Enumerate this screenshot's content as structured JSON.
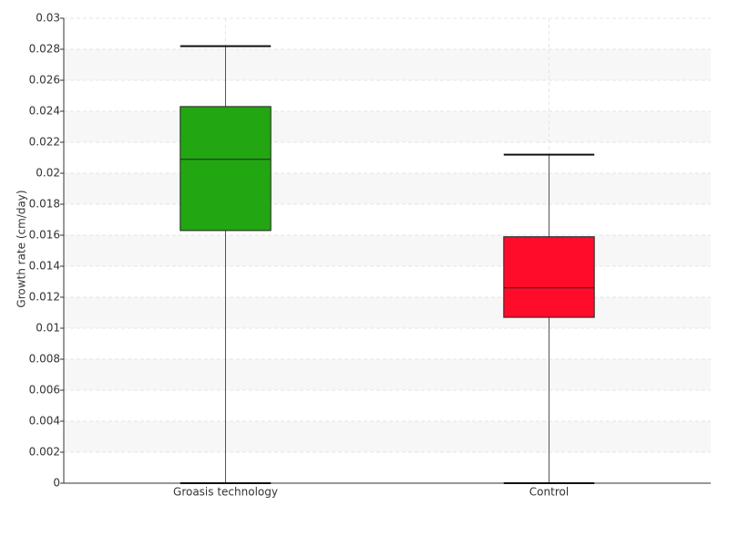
{
  "chart_data": {
    "type": "box",
    "y_label": "Growth rate (cm/day)",
    "categories": [
      "Groasis technology",
      "Control"
    ],
    "boxes": [
      {
        "min": 0,
        "q1": 0.0163,
        "median": 0.0209,
        "q3": 0.0243,
        "max": 0.0282,
        "color": "#22a612"
      },
      {
        "min": 0,
        "q1": 0.0107,
        "median": 0.0126,
        "q3": 0.0159,
        "max": 0.0212,
        "color": "#ff0c2a"
      }
    ],
    "ylim": [
      0,
      0.03
    ],
    "yticks": [
      0,
      0.002,
      0.004,
      0.006,
      0.008,
      0.01,
      0.012,
      0.014,
      0.016,
      0.018,
      0.02,
      0.022,
      0.024,
      0.026,
      0.028,
      0.03
    ],
    "grid": true
  }
}
